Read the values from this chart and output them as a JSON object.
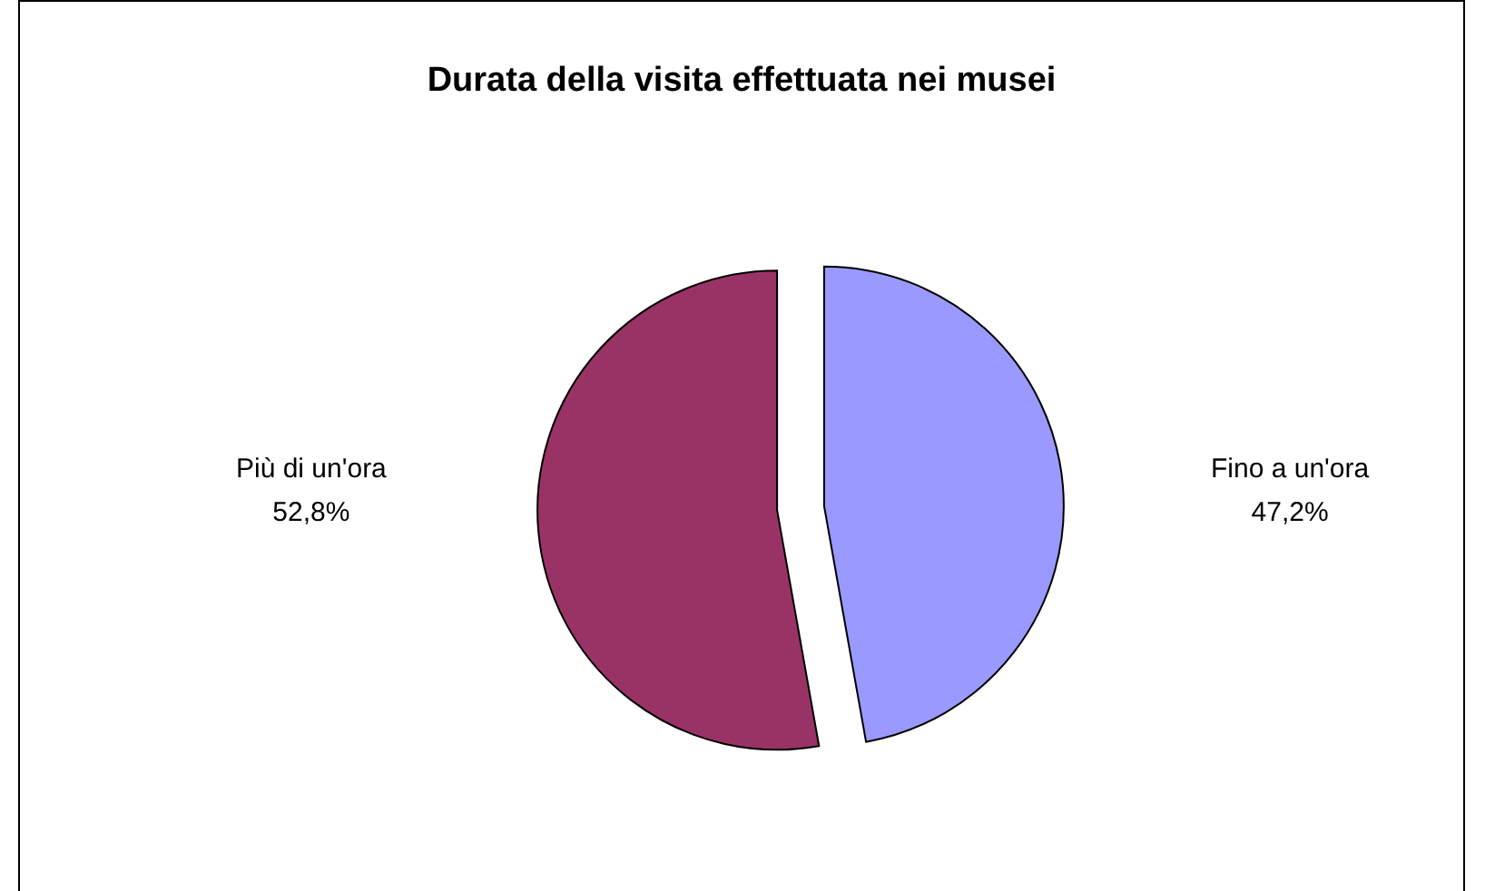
{
  "chart_data": {
    "type": "pie",
    "title": "Durata della visita effettuata nei musei",
    "categories": [
      "Fino a un'ora",
      "Più di un'ora"
    ],
    "values": [
      47.2,
      52.8
    ],
    "colors": [
      "#9999ff",
      "#993366"
    ],
    "value_labels": [
      "47,2%",
      "52,8%"
    ]
  }
}
